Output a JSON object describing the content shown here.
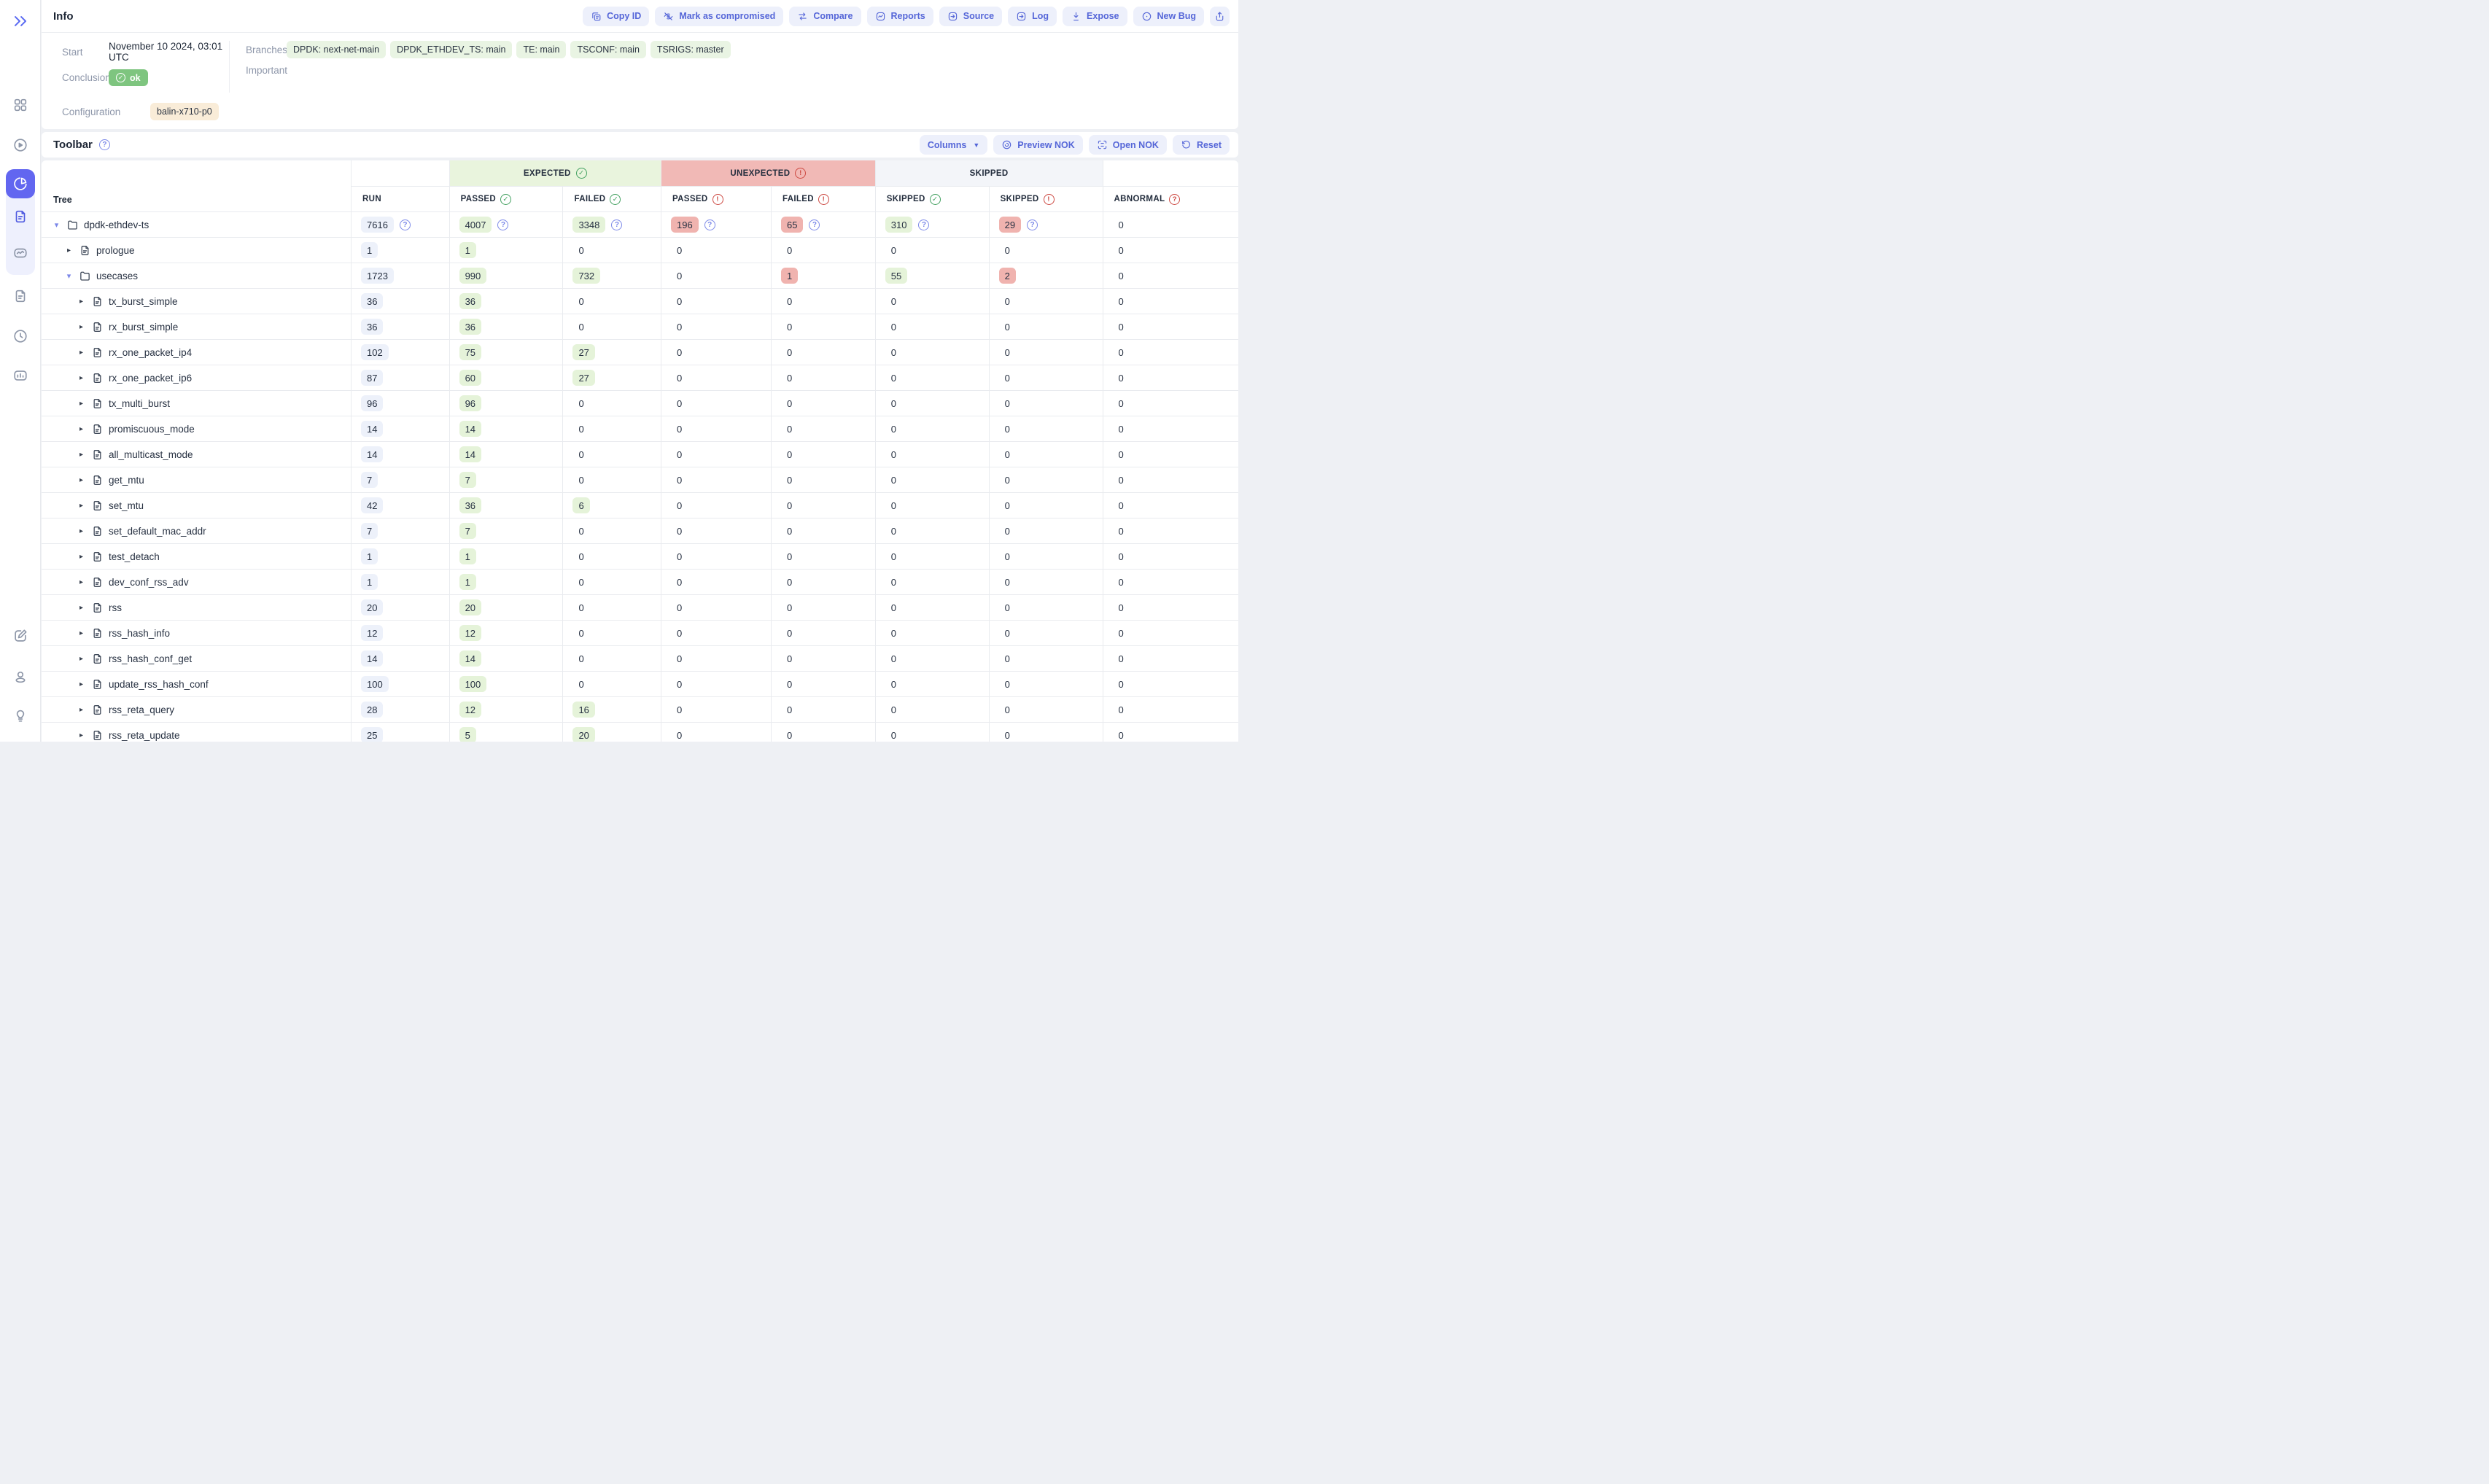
{
  "app": {
    "accent_color": "#5566d8",
    "page_bg": "#eef0f4"
  },
  "sidebar": {
    "expand_icon": "double-chevron",
    "nav_icons": [
      {
        "id": "dashboard",
        "icon": "grid"
      },
      {
        "id": "runs",
        "icon": "play-circle"
      },
      {
        "id": "results-pie",
        "icon": "pie-chart",
        "active": true
      },
      {
        "id": "result-document",
        "icon": "document",
        "highlight": true
      },
      {
        "id": "trends",
        "icon": "trend-chart",
        "highlight": true
      },
      {
        "id": "logs-document",
        "icon": "document"
      },
      {
        "id": "history",
        "icon": "clock"
      },
      {
        "id": "metrics",
        "icon": "bar-chart"
      }
    ],
    "bottom_icons": [
      {
        "id": "edit",
        "icon": "edit"
      },
      {
        "id": "profile",
        "icon": "user"
      },
      {
        "id": "ideas",
        "icon": "lightbulb"
      }
    ]
  },
  "info": {
    "title": "Info",
    "actions": [
      {
        "id": "copy-id",
        "label": "Copy ID",
        "icon": "copy"
      },
      {
        "id": "mark-as-compromised",
        "label": "Mark as compromised",
        "icon": "eye-off"
      },
      {
        "id": "compare",
        "label": "Compare",
        "icon": "compare"
      },
      {
        "id": "reports",
        "label": "Reports",
        "icon": "report-chart"
      },
      {
        "id": "source",
        "label": "Source",
        "icon": "arrow-box"
      },
      {
        "id": "log",
        "label": "Log",
        "icon": "arrow-box"
      },
      {
        "id": "expose",
        "label": "Expose",
        "icon": "download"
      },
      {
        "id": "new-bug",
        "label": "New Bug",
        "icon": "bug-circle"
      },
      {
        "id": "share",
        "label": "",
        "icon": "share"
      }
    ],
    "fields": {
      "start_label": "Start",
      "start_value": "November 10 2024, 03:01 UTC",
      "conclusion_label": "Conclusion",
      "conclusion_value": "ok",
      "branches_label": "Branches",
      "branches": [
        "DPDK: next-net-main",
        "DPDK_ETHDEV_TS: main",
        "TE: main",
        "TSCONF: main",
        "TSRIGS: master"
      ],
      "important_label": "Important",
      "configuration_label": "Configuration",
      "configuration_value": "balin-x710-p0"
    },
    "colors": {
      "ok_badge": "#7ec57f",
      "branch_chip": "#e9f4e3",
      "config_chip": "#f9ecd8"
    }
  },
  "toolbar": {
    "title": "Toolbar",
    "actions": [
      {
        "id": "columns",
        "label": "Columns",
        "caret": true
      },
      {
        "id": "preview-nok",
        "label": "Preview NOK",
        "icon": "preview"
      },
      {
        "id": "open-nok",
        "label": "Open NOK",
        "icon": "scan"
      },
      {
        "id": "reset",
        "label": "Reset",
        "icon": "reset"
      }
    ]
  },
  "table": {
    "tree_header": "Tree",
    "groups": [
      {
        "id": "expected",
        "label": "EXPECTED",
        "icon": "check",
        "bg": "#e9f4dd"
      },
      {
        "id": "unexpected",
        "label": "UNEXPECTED",
        "icon": "alert",
        "bg": "#f1b9b6"
      },
      {
        "id": "skipped",
        "label": "SKIPPED",
        "icon": "",
        "bg": "#f3f5f9"
      }
    ],
    "columns": [
      {
        "id": "run",
        "label": "RUN",
        "icon": ""
      },
      {
        "id": "passed-expected",
        "label": "PASSED",
        "icon": "check"
      },
      {
        "id": "failed-expected",
        "label": "FAILED",
        "icon": "check"
      },
      {
        "id": "passed-unexpected",
        "label": "PASSED",
        "icon": "alert"
      },
      {
        "id": "failed-unexpected",
        "label": "FAILED",
        "icon": "alert"
      },
      {
        "id": "skipped-expected",
        "label": "SKIPPED",
        "icon": "check"
      },
      {
        "id": "skipped-unexpected",
        "label": "SKIPPED",
        "icon": "alert"
      },
      {
        "id": "abnormal",
        "label": "ABNORMAL",
        "icon": "question"
      }
    ],
    "badge_colors": {
      "run": "#edf1fa",
      "green": "#e5f3d9",
      "red": "#f0b3af"
    },
    "rows": [
      {
        "name": "dpdk-ethdev-ts",
        "type": "folder",
        "depth": 0,
        "expanded": true,
        "cells": [
          {
            "v": "7616",
            "s": "run",
            "q": true
          },
          {
            "v": "4007",
            "s": "green",
            "q": true
          },
          {
            "v": "3348",
            "s": "green",
            "q": true
          },
          {
            "v": "196",
            "s": "red",
            "q": true
          },
          {
            "v": "65",
            "s": "red",
            "q": true
          },
          {
            "v": "310",
            "s": "green",
            "q": true
          },
          {
            "v": "29",
            "s": "red",
            "q": true
          },
          {
            "v": "0",
            "s": "plain"
          }
        ]
      },
      {
        "name": "prologue",
        "type": "file",
        "depth": 1,
        "expanded": false,
        "cells": [
          {
            "v": "1",
            "s": "run"
          },
          {
            "v": "1",
            "s": "green"
          },
          {
            "v": "0",
            "s": "plain"
          },
          {
            "v": "0",
            "s": "plain"
          },
          {
            "v": "0",
            "s": "plain"
          },
          {
            "v": "0",
            "s": "plain"
          },
          {
            "v": "0",
            "s": "plain"
          },
          {
            "v": "0",
            "s": "plain"
          }
        ]
      },
      {
        "name": "usecases",
        "type": "folder",
        "depth": 1,
        "expanded": true,
        "cells": [
          {
            "v": "1723",
            "s": "run"
          },
          {
            "v": "990",
            "s": "green"
          },
          {
            "v": "732",
            "s": "green"
          },
          {
            "v": "0",
            "s": "plain"
          },
          {
            "v": "1",
            "s": "red"
          },
          {
            "v": "55",
            "s": "green"
          },
          {
            "v": "2",
            "s": "red"
          },
          {
            "v": "0",
            "s": "plain"
          }
        ]
      },
      {
        "name": "tx_burst_simple",
        "type": "file",
        "depth": 2,
        "expanded": false,
        "cells": [
          {
            "v": "36",
            "s": "run"
          },
          {
            "v": "36",
            "s": "green"
          },
          {
            "v": "0",
            "s": "plain"
          },
          {
            "v": "0",
            "s": "plain"
          },
          {
            "v": "0",
            "s": "plain"
          },
          {
            "v": "0",
            "s": "plain"
          },
          {
            "v": "0",
            "s": "plain"
          },
          {
            "v": "0",
            "s": "plain"
          }
        ]
      },
      {
        "name": "rx_burst_simple",
        "type": "file",
        "depth": 2,
        "expanded": false,
        "cells": [
          {
            "v": "36",
            "s": "run"
          },
          {
            "v": "36",
            "s": "green"
          },
          {
            "v": "0",
            "s": "plain"
          },
          {
            "v": "0",
            "s": "plain"
          },
          {
            "v": "0",
            "s": "plain"
          },
          {
            "v": "0",
            "s": "plain"
          },
          {
            "v": "0",
            "s": "plain"
          },
          {
            "v": "0",
            "s": "plain"
          }
        ]
      },
      {
        "name": "rx_one_packet_ip4",
        "type": "file",
        "depth": 2,
        "expanded": false,
        "cells": [
          {
            "v": "102",
            "s": "run"
          },
          {
            "v": "75",
            "s": "green"
          },
          {
            "v": "27",
            "s": "green"
          },
          {
            "v": "0",
            "s": "plain"
          },
          {
            "v": "0",
            "s": "plain"
          },
          {
            "v": "0",
            "s": "plain"
          },
          {
            "v": "0",
            "s": "plain"
          },
          {
            "v": "0",
            "s": "plain"
          }
        ]
      },
      {
        "name": "rx_one_packet_ip6",
        "type": "file",
        "depth": 2,
        "expanded": false,
        "cells": [
          {
            "v": "87",
            "s": "run"
          },
          {
            "v": "60",
            "s": "green"
          },
          {
            "v": "27",
            "s": "green"
          },
          {
            "v": "0",
            "s": "plain"
          },
          {
            "v": "0",
            "s": "plain"
          },
          {
            "v": "0",
            "s": "plain"
          },
          {
            "v": "0",
            "s": "plain"
          },
          {
            "v": "0",
            "s": "plain"
          }
        ]
      },
      {
        "name": "tx_multi_burst",
        "type": "file",
        "depth": 2,
        "expanded": false,
        "cells": [
          {
            "v": "96",
            "s": "run"
          },
          {
            "v": "96",
            "s": "green"
          },
          {
            "v": "0",
            "s": "plain"
          },
          {
            "v": "0",
            "s": "plain"
          },
          {
            "v": "0",
            "s": "plain"
          },
          {
            "v": "0",
            "s": "plain"
          },
          {
            "v": "0",
            "s": "plain"
          },
          {
            "v": "0",
            "s": "plain"
          }
        ]
      },
      {
        "name": "promiscuous_mode",
        "type": "file",
        "depth": 2,
        "expanded": false,
        "cells": [
          {
            "v": "14",
            "s": "run"
          },
          {
            "v": "14",
            "s": "green"
          },
          {
            "v": "0",
            "s": "plain"
          },
          {
            "v": "0",
            "s": "plain"
          },
          {
            "v": "0",
            "s": "plain"
          },
          {
            "v": "0",
            "s": "plain"
          },
          {
            "v": "0",
            "s": "plain"
          },
          {
            "v": "0",
            "s": "plain"
          }
        ]
      },
      {
        "name": "all_multicast_mode",
        "type": "file",
        "depth": 2,
        "expanded": false,
        "cells": [
          {
            "v": "14",
            "s": "run"
          },
          {
            "v": "14",
            "s": "green"
          },
          {
            "v": "0",
            "s": "plain"
          },
          {
            "v": "0",
            "s": "plain"
          },
          {
            "v": "0",
            "s": "plain"
          },
          {
            "v": "0",
            "s": "plain"
          },
          {
            "v": "0",
            "s": "plain"
          },
          {
            "v": "0",
            "s": "plain"
          }
        ]
      },
      {
        "name": "get_mtu",
        "type": "file",
        "depth": 2,
        "expanded": false,
        "cells": [
          {
            "v": "7",
            "s": "run"
          },
          {
            "v": "7",
            "s": "green"
          },
          {
            "v": "0",
            "s": "plain"
          },
          {
            "v": "0",
            "s": "plain"
          },
          {
            "v": "0",
            "s": "plain"
          },
          {
            "v": "0",
            "s": "plain"
          },
          {
            "v": "0",
            "s": "plain"
          },
          {
            "v": "0",
            "s": "plain"
          }
        ]
      },
      {
        "name": "set_mtu",
        "type": "file",
        "depth": 2,
        "expanded": false,
        "cells": [
          {
            "v": "42",
            "s": "run"
          },
          {
            "v": "36",
            "s": "green"
          },
          {
            "v": "6",
            "s": "green"
          },
          {
            "v": "0",
            "s": "plain"
          },
          {
            "v": "0",
            "s": "plain"
          },
          {
            "v": "0",
            "s": "plain"
          },
          {
            "v": "0",
            "s": "plain"
          },
          {
            "v": "0",
            "s": "plain"
          }
        ]
      },
      {
        "name": "set_default_mac_addr",
        "type": "file",
        "depth": 2,
        "expanded": false,
        "cells": [
          {
            "v": "7",
            "s": "run"
          },
          {
            "v": "7",
            "s": "green"
          },
          {
            "v": "0",
            "s": "plain"
          },
          {
            "v": "0",
            "s": "plain"
          },
          {
            "v": "0",
            "s": "plain"
          },
          {
            "v": "0",
            "s": "plain"
          },
          {
            "v": "0",
            "s": "plain"
          },
          {
            "v": "0",
            "s": "plain"
          }
        ]
      },
      {
        "name": "test_detach",
        "type": "file",
        "depth": 2,
        "expanded": false,
        "cells": [
          {
            "v": "1",
            "s": "run"
          },
          {
            "v": "1",
            "s": "green"
          },
          {
            "v": "0",
            "s": "plain"
          },
          {
            "v": "0",
            "s": "plain"
          },
          {
            "v": "0",
            "s": "plain"
          },
          {
            "v": "0",
            "s": "plain"
          },
          {
            "v": "0",
            "s": "plain"
          },
          {
            "v": "0",
            "s": "plain"
          }
        ]
      },
      {
        "name": "dev_conf_rss_adv",
        "type": "file",
        "depth": 2,
        "expanded": false,
        "cells": [
          {
            "v": "1",
            "s": "run"
          },
          {
            "v": "1",
            "s": "green"
          },
          {
            "v": "0",
            "s": "plain"
          },
          {
            "v": "0",
            "s": "plain"
          },
          {
            "v": "0",
            "s": "plain"
          },
          {
            "v": "0",
            "s": "plain"
          },
          {
            "v": "0",
            "s": "plain"
          },
          {
            "v": "0",
            "s": "plain"
          }
        ]
      },
      {
        "name": "rss",
        "type": "file",
        "depth": 2,
        "expanded": false,
        "cells": [
          {
            "v": "20",
            "s": "run"
          },
          {
            "v": "20",
            "s": "green"
          },
          {
            "v": "0",
            "s": "plain"
          },
          {
            "v": "0",
            "s": "plain"
          },
          {
            "v": "0",
            "s": "plain"
          },
          {
            "v": "0",
            "s": "plain"
          },
          {
            "v": "0",
            "s": "plain"
          },
          {
            "v": "0",
            "s": "plain"
          }
        ]
      },
      {
        "name": "rss_hash_info",
        "type": "file",
        "depth": 2,
        "expanded": false,
        "cells": [
          {
            "v": "12",
            "s": "run"
          },
          {
            "v": "12",
            "s": "green"
          },
          {
            "v": "0",
            "s": "plain"
          },
          {
            "v": "0",
            "s": "plain"
          },
          {
            "v": "0",
            "s": "plain"
          },
          {
            "v": "0",
            "s": "plain"
          },
          {
            "v": "0",
            "s": "plain"
          },
          {
            "v": "0",
            "s": "plain"
          }
        ]
      },
      {
        "name": "rss_hash_conf_get",
        "type": "file",
        "depth": 2,
        "expanded": false,
        "cells": [
          {
            "v": "14",
            "s": "run"
          },
          {
            "v": "14",
            "s": "green"
          },
          {
            "v": "0",
            "s": "plain"
          },
          {
            "v": "0",
            "s": "plain"
          },
          {
            "v": "0",
            "s": "plain"
          },
          {
            "v": "0",
            "s": "plain"
          },
          {
            "v": "0",
            "s": "plain"
          },
          {
            "v": "0",
            "s": "plain"
          }
        ]
      },
      {
        "name": "update_rss_hash_conf",
        "type": "file",
        "depth": 2,
        "expanded": false,
        "cells": [
          {
            "v": "100",
            "s": "run"
          },
          {
            "v": "100",
            "s": "green"
          },
          {
            "v": "0",
            "s": "plain"
          },
          {
            "v": "0",
            "s": "plain"
          },
          {
            "v": "0",
            "s": "plain"
          },
          {
            "v": "0",
            "s": "plain"
          },
          {
            "v": "0",
            "s": "plain"
          },
          {
            "v": "0",
            "s": "plain"
          }
        ]
      },
      {
        "name": "rss_reta_query",
        "type": "file",
        "depth": 2,
        "expanded": false,
        "cells": [
          {
            "v": "28",
            "s": "run"
          },
          {
            "v": "12",
            "s": "green"
          },
          {
            "v": "16",
            "s": "green"
          },
          {
            "v": "0",
            "s": "plain"
          },
          {
            "v": "0",
            "s": "plain"
          },
          {
            "v": "0",
            "s": "plain"
          },
          {
            "v": "0",
            "s": "plain"
          },
          {
            "v": "0",
            "s": "plain"
          }
        ]
      },
      {
        "name": "rss_reta_update",
        "type": "file",
        "depth": 2,
        "expanded": false,
        "cells": [
          {
            "v": "25",
            "s": "run"
          },
          {
            "v": "5",
            "s": "green"
          },
          {
            "v": "20",
            "s": "green"
          },
          {
            "v": "0",
            "s": "plain"
          },
          {
            "v": "0",
            "s": "plain"
          },
          {
            "v": "0",
            "s": "plain"
          },
          {
            "v": "0",
            "s": "plain"
          },
          {
            "v": "0",
            "s": "plain"
          }
        ]
      }
    ]
  }
}
